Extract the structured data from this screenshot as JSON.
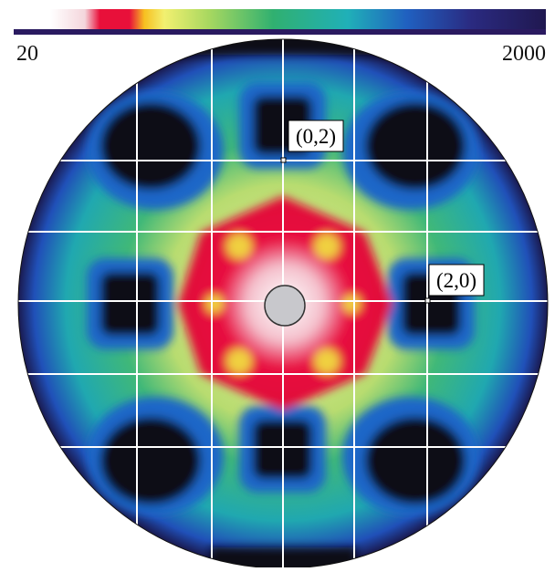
{
  "colorbar": {
    "min_label": "20",
    "max_label": "2000"
  },
  "annotations": [
    "(0,2)",
    "(2,0)"
  ]
}
